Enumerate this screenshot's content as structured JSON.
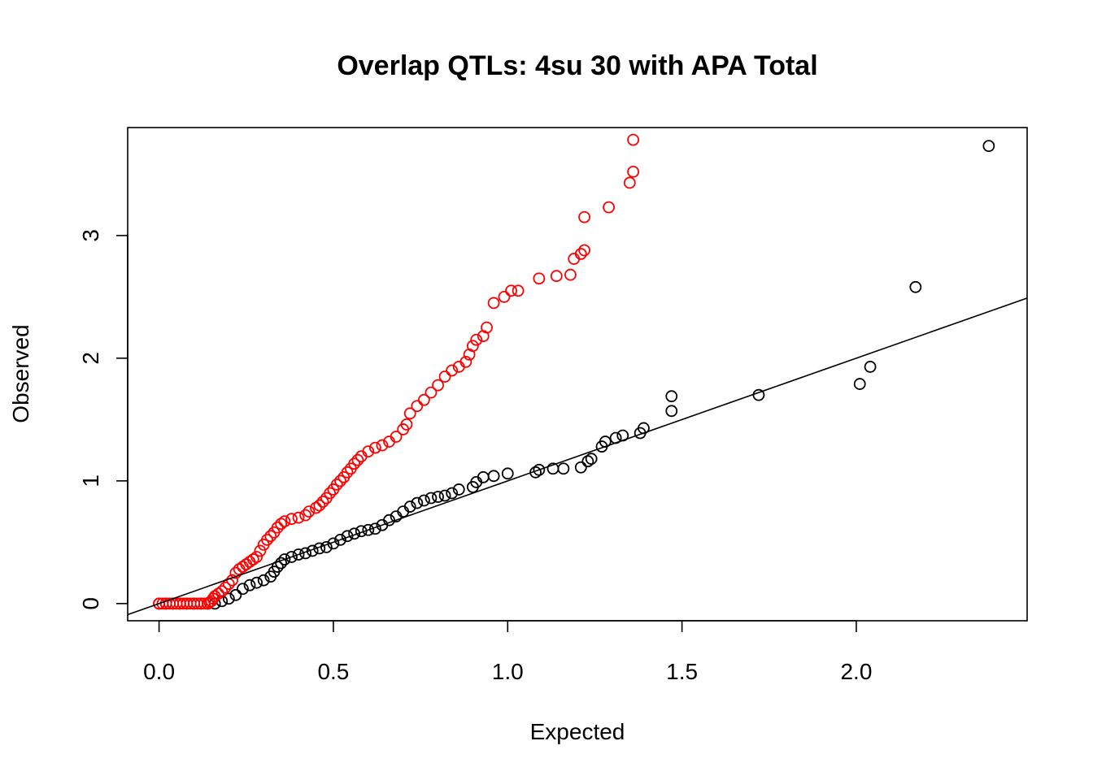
{
  "chart_data": {
    "type": "scatter",
    "title": "Overlap QTLs: 4su 30 with APA Total",
    "xlabel": "Expected",
    "ylabel": "Observed",
    "xlim": [
      -0.09,
      2.49
    ],
    "ylim": [
      -0.14,
      3.88
    ],
    "x_ticks": [
      0,
      0.5,
      1,
      1.5,
      2
    ],
    "x_tick_labels": [
      "0.0",
      "0.5",
      "1.0",
      "1.5",
      "2.0"
    ],
    "y_ticks": [
      0,
      1,
      2,
      3
    ],
    "y_tick_labels": [
      "0",
      "1",
      "2",
      "3"
    ],
    "grid": false,
    "reference_line": {
      "intercept": 0,
      "slope": 1.0
    },
    "colors": {
      "red_series": "#ff0000",
      "black_series": "#000000",
      "axes": "#000000"
    },
    "series": [
      {
        "color": "#ff0000",
        "points": [
          [
            0.0,
            0.0
          ],
          [
            0.01,
            0.0
          ],
          [
            0.02,
            0.0
          ],
          [
            0.03,
            0.0
          ],
          [
            0.04,
            0.0
          ],
          [
            0.05,
            0.0
          ],
          [
            0.06,
            0.0
          ],
          [
            0.07,
            0.0
          ],
          [
            0.08,
            0.0
          ],
          [
            0.09,
            0.0
          ],
          [
            0.1,
            0.0
          ],
          [
            0.11,
            0.0
          ],
          [
            0.12,
            0.0
          ],
          [
            0.13,
            0.0
          ],
          [
            0.14,
            0.0
          ],
          [
            0.145,
            0.01
          ],
          [
            0.15,
            0.02
          ],
          [
            0.155,
            0.04
          ],
          [
            0.16,
            0.06
          ],
          [
            0.17,
            0.08
          ],
          [
            0.18,
            0.1
          ],
          [
            0.19,
            0.13
          ],
          [
            0.2,
            0.16
          ],
          [
            0.21,
            0.19
          ],
          [
            0.22,
            0.25
          ],
          [
            0.23,
            0.28
          ],
          [
            0.24,
            0.3
          ],
          [
            0.25,
            0.32
          ],
          [
            0.26,
            0.34
          ],
          [
            0.27,
            0.36
          ],
          [
            0.28,
            0.38
          ],
          [
            0.29,
            0.43
          ],
          [
            0.3,
            0.48
          ],
          [
            0.31,
            0.52
          ],
          [
            0.32,
            0.55
          ],
          [
            0.33,
            0.58
          ],
          [
            0.34,
            0.62
          ],
          [
            0.35,
            0.65
          ],
          [
            0.36,
            0.67
          ],
          [
            0.38,
            0.69
          ],
          [
            0.4,
            0.7
          ],
          [
            0.42,
            0.72
          ],
          [
            0.43,
            0.75
          ],
          [
            0.45,
            0.78
          ],
          [
            0.46,
            0.8
          ],
          [
            0.47,
            0.83
          ],
          [
            0.48,
            0.86
          ],
          [
            0.49,
            0.9
          ],
          [
            0.5,
            0.93
          ],
          [
            0.51,
            0.97
          ],
          [
            0.52,
            1.0
          ],
          [
            0.53,
            1.03
          ],
          [
            0.54,
            1.07
          ],
          [
            0.55,
            1.1
          ],
          [
            0.56,
            1.14
          ],
          [
            0.57,
            1.17
          ],
          [
            0.58,
            1.2
          ],
          [
            0.6,
            1.24
          ],
          [
            0.62,
            1.27
          ],
          [
            0.64,
            1.29
          ],
          [
            0.66,
            1.32
          ],
          [
            0.68,
            1.36
          ],
          [
            0.7,
            1.42
          ],
          [
            0.71,
            1.46
          ],
          [
            0.72,
            1.55
          ],
          [
            0.74,
            1.61
          ],
          [
            0.76,
            1.66
          ],
          [
            0.78,
            1.72
          ],
          [
            0.8,
            1.78
          ],
          [
            0.82,
            1.85
          ],
          [
            0.84,
            1.9
          ],
          [
            0.86,
            1.93
          ],
          [
            0.88,
            1.97
          ],
          [
            0.89,
            2.03
          ],
          [
            0.9,
            2.1
          ],
          [
            0.91,
            2.15
          ],
          [
            0.93,
            2.18
          ],
          [
            0.94,
            2.25
          ],
          [
            0.96,
            2.45
          ],
          [
            0.99,
            2.5
          ],
          [
            1.01,
            2.55
          ],
          [
            1.03,
            2.55
          ],
          [
            1.09,
            2.65
          ],
          [
            1.14,
            2.67
          ],
          [
            1.18,
            2.68
          ],
          [
            1.19,
            2.81
          ],
          [
            1.21,
            2.85
          ],
          [
            1.22,
            2.88
          ],
          [
            1.22,
            3.15
          ],
          [
            1.29,
            3.23
          ],
          [
            1.35,
            3.43
          ],
          [
            1.36,
            3.52
          ],
          [
            1.36,
            3.78
          ]
        ]
      },
      {
        "color": "#000000",
        "points": [
          [
            0.0,
            0.0
          ],
          [
            0.02,
            0.0
          ],
          [
            0.04,
            0.0
          ],
          [
            0.06,
            0.0
          ],
          [
            0.08,
            0.0
          ],
          [
            0.1,
            0.0
          ],
          [
            0.12,
            0.0
          ],
          [
            0.14,
            0.0
          ],
          [
            0.16,
            0.0
          ],
          [
            0.18,
            0.02
          ],
          [
            0.2,
            0.04
          ],
          [
            0.22,
            0.07
          ],
          [
            0.24,
            0.12
          ],
          [
            0.26,
            0.15
          ],
          [
            0.28,
            0.17
          ],
          [
            0.3,
            0.19
          ],
          [
            0.32,
            0.22
          ],
          [
            0.33,
            0.26
          ],
          [
            0.34,
            0.3
          ],
          [
            0.35,
            0.33
          ],
          [
            0.36,
            0.36
          ],
          [
            0.38,
            0.38
          ],
          [
            0.4,
            0.4
          ],
          [
            0.42,
            0.41
          ],
          [
            0.44,
            0.43
          ],
          [
            0.46,
            0.45
          ],
          [
            0.48,
            0.46
          ],
          [
            0.5,
            0.49
          ],
          [
            0.52,
            0.52
          ],
          [
            0.54,
            0.55
          ],
          [
            0.56,
            0.57
          ],
          [
            0.58,
            0.59
          ],
          [
            0.6,
            0.6
          ],
          [
            0.62,
            0.61
          ],
          [
            0.64,
            0.64
          ],
          [
            0.66,
            0.68
          ],
          [
            0.68,
            0.71
          ],
          [
            0.7,
            0.75
          ],
          [
            0.72,
            0.79
          ],
          [
            0.74,
            0.82
          ],
          [
            0.76,
            0.84
          ],
          [
            0.78,
            0.86
          ],
          [
            0.8,
            0.87
          ],
          [
            0.82,
            0.88
          ],
          [
            0.84,
            0.9
          ],
          [
            0.86,
            0.93
          ],
          [
            0.9,
            0.95
          ],
          [
            0.91,
            0.99
          ],
          [
            0.93,
            1.03
          ],
          [
            0.96,
            1.04
          ],
          [
            1.0,
            1.06
          ],
          [
            1.08,
            1.07
          ],
          [
            1.09,
            1.09
          ],
          [
            1.13,
            1.1
          ],
          [
            1.16,
            1.1
          ],
          [
            1.21,
            1.11
          ],
          [
            1.23,
            1.16
          ],
          [
            1.24,
            1.18
          ],
          [
            1.27,
            1.28
          ],
          [
            1.28,
            1.32
          ],
          [
            1.31,
            1.35
          ],
          [
            1.33,
            1.37
          ],
          [
            1.38,
            1.39
          ],
          [
            1.39,
            1.43
          ],
          [
            1.47,
            1.57
          ],
          [
            1.47,
            1.69
          ],
          [
            1.72,
            1.7
          ],
          [
            2.01,
            1.79
          ],
          [
            2.04,
            1.93
          ],
          [
            2.17,
            2.58
          ],
          [
            2.38,
            3.73
          ]
        ]
      }
    ]
  }
}
